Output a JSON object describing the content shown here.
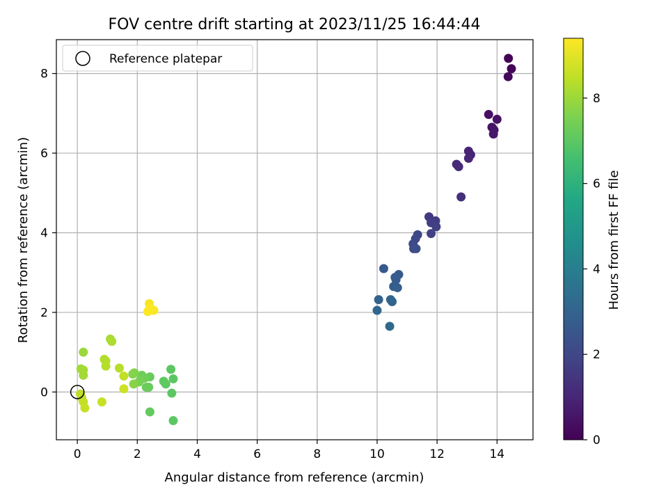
{
  "chart_data": {
    "type": "scatter",
    "title": "FOV centre drift starting at 2023/11/25 16:44:44",
    "xlabel": "Angular distance from reference (arcmin)",
    "ylabel": "Rotation from reference (arcmin)",
    "xlim": [
      -0.7,
      15.2
    ],
    "ylim": [
      -1.2,
      8.85
    ],
    "xticks": [
      0,
      2,
      4,
      6,
      8,
      10,
      12,
      14
    ],
    "yticks": [
      0,
      2,
      4,
      6,
      8
    ],
    "grid": true,
    "legend": {
      "position": "upper-left",
      "entries": [
        "Reference platepar"
      ]
    },
    "reference": {
      "x": 0,
      "y": 0,
      "label": "Reference platepar"
    },
    "colorbar": {
      "label": "Hours from first FF file",
      "range": [
        0,
        9.4
      ],
      "ticks": [
        0,
        2,
        4,
        6,
        8
      ],
      "colormap": "viridis"
    },
    "points": [
      {
        "x": 14.38,
        "y": 8.38,
        "c": 0.05
      },
      {
        "x": 14.48,
        "y": 8.12,
        "c": 0.1
      },
      {
        "x": 14.37,
        "y": 7.92,
        "c": 0.15
      },
      {
        "x": 13.72,
        "y": 6.97,
        "c": 0.4
      },
      {
        "x": 14.0,
        "y": 6.85,
        "c": 0.45
      },
      {
        "x": 13.83,
        "y": 6.65,
        "c": 0.5
      },
      {
        "x": 13.9,
        "y": 6.58,
        "c": 0.55
      },
      {
        "x": 13.88,
        "y": 6.48,
        "c": 0.6
      },
      {
        "x": 13.05,
        "y": 6.05,
        "c": 0.9
      },
      {
        "x": 13.12,
        "y": 5.96,
        "c": 0.95
      },
      {
        "x": 13.05,
        "y": 5.87,
        "c": 1.0
      },
      {
        "x": 12.65,
        "y": 5.72,
        "c": 1.1
      },
      {
        "x": 12.72,
        "y": 5.66,
        "c": 1.15
      },
      {
        "x": 12.8,
        "y": 4.9,
        "c": 1.3
      },
      {
        "x": 11.73,
        "y": 4.4,
        "c": 1.6
      },
      {
        "x": 11.95,
        "y": 4.3,
        "c": 1.65
      },
      {
        "x": 11.8,
        "y": 4.25,
        "c": 1.7
      },
      {
        "x": 11.97,
        "y": 4.15,
        "c": 1.75
      },
      {
        "x": 11.8,
        "y": 3.98,
        "c": 1.8
      },
      {
        "x": 11.35,
        "y": 3.95,
        "c": 2.0
      },
      {
        "x": 11.28,
        "y": 3.85,
        "c": 2.05
      },
      {
        "x": 11.2,
        "y": 3.72,
        "c": 2.1
      },
      {
        "x": 11.22,
        "y": 3.6,
        "c": 2.15
      },
      {
        "x": 11.3,
        "y": 3.6,
        "c": 2.2
      },
      {
        "x": 10.22,
        "y": 3.1,
        "c": 2.6
      },
      {
        "x": 10.72,
        "y": 2.95,
        "c": 2.65
      },
      {
        "x": 10.6,
        "y": 2.88,
        "c": 2.7
      },
      {
        "x": 10.63,
        "y": 2.82,
        "c": 2.75
      },
      {
        "x": 10.55,
        "y": 2.65,
        "c": 2.8
      },
      {
        "x": 10.68,
        "y": 2.62,
        "c": 2.85
      },
      {
        "x": 10.05,
        "y": 2.32,
        "c": 2.95
      },
      {
        "x": 10.45,
        "y": 2.32,
        "c": 3.0
      },
      {
        "x": 10.5,
        "y": 2.27,
        "c": 3.05
      },
      {
        "x": 10.0,
        "y": 2.05,
        "c": 3.1
      },
      {
        "x": 10.42,
        "y": 1.65,
        "c": 3.2
      },
      {
        "x": 3.12,
        "y": 0.57,
        "c": 7.0
      },
      {
        "x": 3.2,
        "y": 0.33,
        "c": 7.0
      },
      {
        "x": 2.88,
        "y": 0.27,
        "c": 7.05
      },
      {
        "x": 2.95,
        "y": 0.2,
        "c": 7.05
      },
      {
        "x": 3.15,
        "y": -0.03,
        "c": 7.0
      },
      {
        "x": 3.2,
        "y": -0.72,
        "c": 7.0
      },
      {
        "x": 2.42,
        "y": -0.5,
        "c": 7.1
      },
      {
        "x": 2.42,
        "y": 0.38,
        "c": 7.2
      },
      {
        "x": 2.38,
        "y": 0.12,
        "c": 7.2
      },
      {
        "x": 2.3,
        "y": 0.12,
        "c": 7.25
      },
      {
        "x": 2.15,
        "y": 0.42,
        "c": 7.3
      },
      {
        "x": 2.25,
        "y": 0.35,
        "c": 7.35
      },
      {
        "x": 2.1,
        "y": 0.3,
        "c": 7.4
      },
      {
        "x": 2.05,
        "y": 0.25,
        "c": 7.45
      },
      {
        "x": 1.9,
        "y": 0.48,
        "c": 7.6
      },
      {
        "x": 1.85,
        "y": 0.45,
        "c": 7.65
      },
      {
        "x": 1.88,
        "y": 0.2,
        "c": 7.7
      },
      {
        "x": 1.55,
        "y": 0.4,
        "c": 8.5
      },
      {
        "x": 1.4,
        "y": 0.6,
        "c": 8.4
      },
      {
        "x": 1.55,
        "y": 0.08,
        "c": 8.7
      },
      {
        "x": 1.1,
        "y": 1.33,
        "c": 8.2
      },
      {
        "x": 1.15,
        "y": 1.27,
        "c": 8.25
      },
      {
        "x": 0.95,
        "y": 0.78,
        "c": 8.3
      },
      {
        "x": 0.9,
        "y": 0.82,
        "c": 8.3
      },
      {
        "x": 0.95,
        "y": 0.65,
        "c": 8.35
      },
      {
        "x": 0.2,
        "y": 1.0,
        "c": 8.0
      },
      {
        "x": 0.12,
        "y": 0.58,
        "c": 8.05
      },
      {
        "x": 0.2,
        "y": 0.55,
        "c": 8.1
      },
      {
        "x": 0.2,
        "y": 0.42,
        "c": 8.1
      },
      {
        "x": 0.1,
        "y": -0.05,
        "c": 8.45
      },
      {
        "x": 0.15,
        "y": -0.15,
        "c": 8.5
      },
      {
        "x": 0.2,
        "y": -0.25,
        "c": 8.55
      },
      {
        "x": 0.25,
        "y": -0.4,
        "c": 8.6
      },
      {
        "x": 0.82,
        "y": -0.25,
        "c": 8.6
      },
      {
        "x": 2.4,
        "y": 2.22,
        "c": 9.3
      },
      {
        "x": 2.42,
        "y": 2.12,
        "c": 9.35
      },
      {
        "x": 2.55,
        "y": 2.05,
        "c": 9.35
      },
      {
        "x": 2.35,
        "y": 2.02,
        "c": 9.4
      }
    ]
  }
}
